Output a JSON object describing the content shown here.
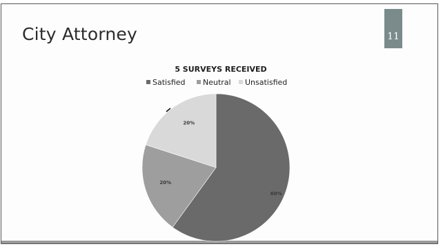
{
  "slide": {
    "title": "City Attorney",
    "page_number": "11"
  },
  "colors": {
    "badge": "#7b8a8a",
    "frame": "#555555"
  },
  "chart_data": {
    "type": "pie",
    "title": "5 SURVEYS RECEIVED",
    "legend_position": "top",
    "categories": [
      "Satisfied",
      "Neutral",
      "Unsatisfied"
    ],
    "values": [
      60,
      20,
      20
    ],
    "value_labels": [
      "60%",
      "20%",
      "20%"
    ],
    "colors": [
      "#6a6a6a",
      "#9e9e9e",
      "#d9d9d9"
    ],
    "start_angle_deg": 0,
    "direction": "clockwise"
  }
}
